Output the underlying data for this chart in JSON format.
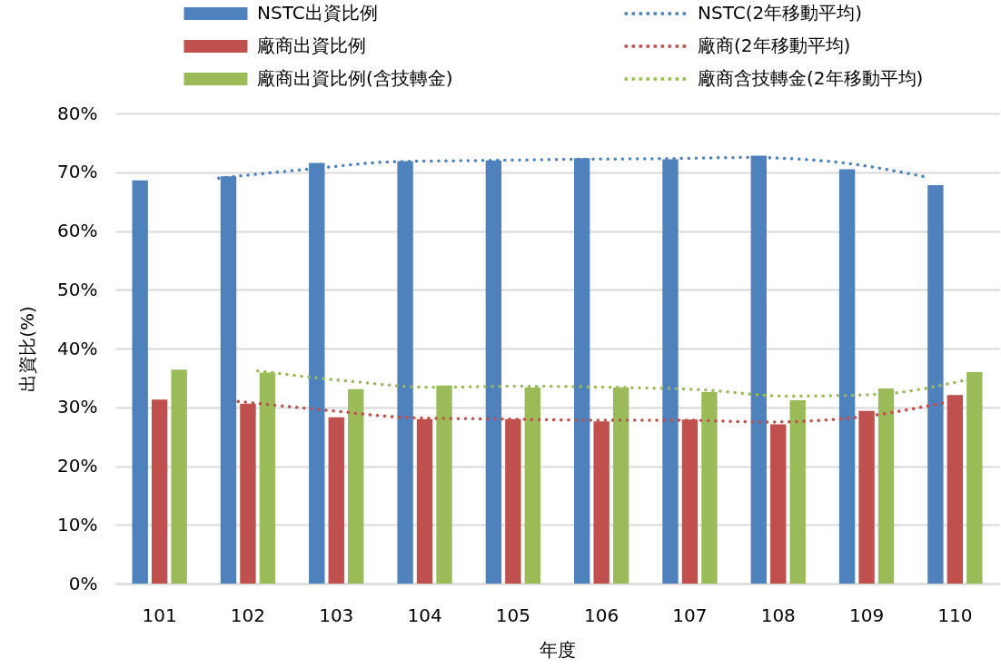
{
  "chart_data": {
    "type": "bar",
    "xlabel": "年度",
    "ylabel": "出資比(%)",
    "categories": [
      "101",
      "102",
      "103",
      "104",
      "105",
      "106",
      "107",
      "108",
      "109",
      "110"
    ],
    "series": [
      {
        "name": "NSTC出資比例",
        "color": "#4f81bd",
        "values": [
          68.6,
          69.3,
          71.6,
          71.9,
          72.0,
          72.4,
          72.2,
          72.8,
          70.5,
          67.8
        ]
      },
      {
        "name": "廠商出資比例",
        "color": "#c0504d",
        "values": [
          31.3,
          30.6,
          28.3,
          28.0,
          28.0,
          27.6,
          27.9,
          27.1,
          29.4,
          32.1
        ]
      },
      {
        "name": "廠商出資比例(含技轉金)",
        "color": "#9bbb59",
        "values": [
          36.4,
          35.9,
          33.1,
          33.7,
          33.4,
          33.4,
          32.6,
          31.2,
          33.2,
          36.0
        ]
      },
      {
        "name": "NSTC(2年移動平均)",
        "type": "line",
        "line_style": "dotted",
        "color": "#4f81bd",
        "values": [
          null,
          69.0,
          70.5,
          71.8,
          72.0,
          72.2,
          72.3,
          72.5,
          71.7,
          69.2
        ]
      },
      {
        "name": "廠商(2年移動平均)",
        "type": "line",
        "line_style": "dotted",
        "color": "#c0504d",
        "values": [
          null,
          31.0,
          29.5,
          28.2,
          28.0,
          27.8,
          27.8,
          27.5,
          28.3,
          30.8
        ]
      },
      {
        "name": "廠商含技轉金(2年移動平均)",
        "type": "line",
        "line_style": "dotted",
        "color": "#9bbb59",
        "values": [
          null,
          36.2,
          34.5,
          33.4,
          33.6,
          33.4,
          33.0,
          31.9,
          32.2,
          34.6
        ]
      }
    ],
    "ylim": [
      0,
      80
    ],
    "yticks": [
      {
        "value": 0,
        "label": "0%"
      },
      {
        "value": 10,
        "label": "10%"
      },
      {
        "value": 20,
        "label": "20%"
      },
      {
        "value": 30,
        "label": "30%"
      },
      {
        "value": 40,
        "label": "40%"
      },
      {
        "value": 50,
        "label": "50%"
      },
      {
        "value": 60,
        "label": "60%"
      },
      {
        "value": 70,
        "label": "70%"
      },
      {
        "value": 80,
        "label": "80%"
      }
    ],
    "grid": "y",
    "legend": "top"
  }
}
